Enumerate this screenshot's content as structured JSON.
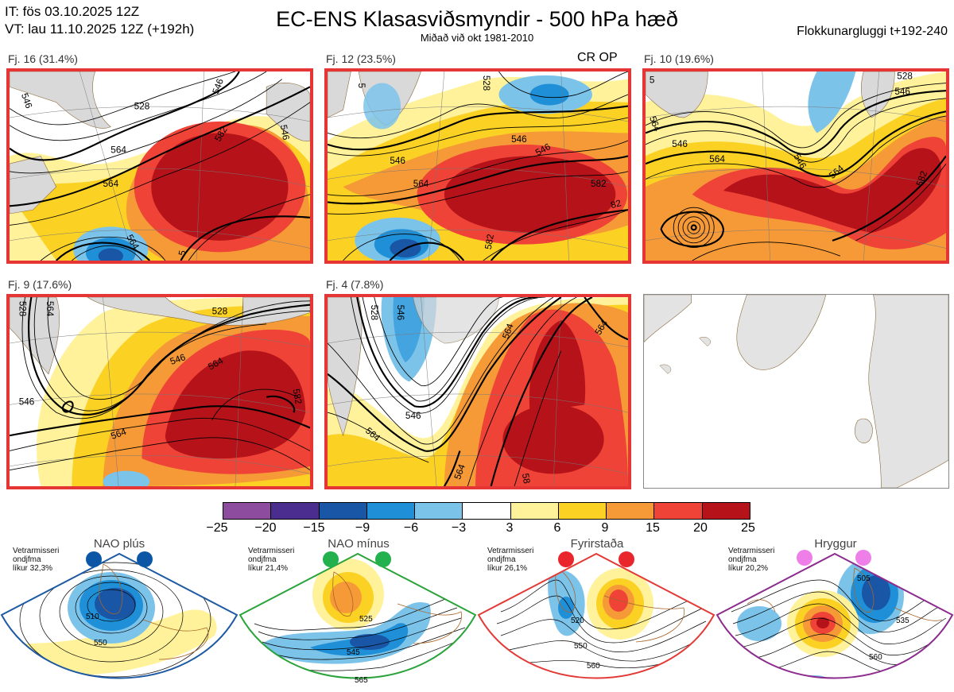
{
  "header": {
    "init_time": "IT: fös 03.10.2025 12Z",
    "valid_time": "VT: lau 11.10.2025 12Z  (+192h)",
    "title": "EC-ENS Klasasviðsmyndir - 500 hPa hæð",
    "subtitle": "Miðað við okt 1981-2010",
    "cluster_window": "Flokkunargluggi t+192-240"
  },
  "clusters": [
    {
      "label": "Fj. 16 (31.4%)",
      "probability_pct": 31.4,
      "contours": [
        "528",
        "546",
        "564",
        "582",
        "546",
        "564",
        "564",
        "546",
        "5"
      ]
    },
    {
      "label": "Fj. 12 (23.5%)",
      "probability_pct": 23.5,
      "op_tag": "CR OP",
      "contours": [
        "546",
        "546",
        "546",
        "564",
        "582",
        "582",
        "528",
        "5",
        "82"
      ]
    },
    {
      "label": "Fj. 10 (19.6%)",
      "probability_pct": 19.6,
      "contours": [
        "546",
        "546",
        "564",
        "546",
        "564",
        "582",
        "528",
        "5",
        "564"
      ]
    },
    {
      "label": "Fj. 9 (17.6%)",
      "probability_pct": 17.6,
      "contours": [
        "528",
        "546",
        "564",
        "546",
        "564",
        "582",
        "564",
        "528"
      ]
    },
    {
      "label": "Fj. 4 (7.8%)",
      "probability_pct": 7.8,
      "contours": [
        "546",
        "564",
        "546",
        "564",
        "564",
        "58",
        "564",
        "528"
      ]
    }
  ],
  "colorbar": {
    "ticks": [
      "−25",
      "−20",
      "−15",
      "−9",
      "−6",
      "−3",
      "3",
      "6",
      "9",
      "15",
      "20",
      "25"
    ],
    "colors": [
      "#8e4c9e",
      "#4b2c8f",
      "#1a56a6",
      "#1f90d8",
      "#7cc3ea",
      "#ffffff",
      "#fff29a",
      "#fbd124",
      "#f59a37",
      "#ee4336",
      "#b51319"
    ]
  },
  "regimes": [
    {
      "title": "NAO plús",
      "meta1": "Vetrarmisseri",
      "meta2": "ondjfma",
      "meta3": "líkur 32,3%",
      "dot_color": "#0b57a6",
      "border_color": "#1d5aa3",
      "contours": [
        "510",
        "550"
      ]
    },
    {
      "title": "NAO mínus",
      "meta1": "Vetrarmisseri",
      "meta2": "ondjfma",
      "meta3": "líkur 21,4%",
      "dot_color": "#22b14c",
      "border_color": "#2aa33a",
      "contours": [
        "525",
        "545",
        "565"
      ]
    },
    {
      "title": "Fyrirstaða",
      "meta1": "Vetrarmisseri",
      "meta2": "ondjfma",
      "meta3": "líkur 26,1%",
      "dot_color": "#e8262c",
      "border_color": "#e33a36",
      "contours": [
        "520",
        "550",
        "560"
      ]
    },
    {
      "title": "Hryggur",
      "meta1": "Vetrarmisseri",
      "meta2": "ondjfma",
      "meta3": "líkur 20,2%",
      "dot_color": "#ee7ee8",
      "border_color": "#8b2c8e",
      "contours": [
        "505",
        "535",
        "560"
      ]
    }
  ]
}
